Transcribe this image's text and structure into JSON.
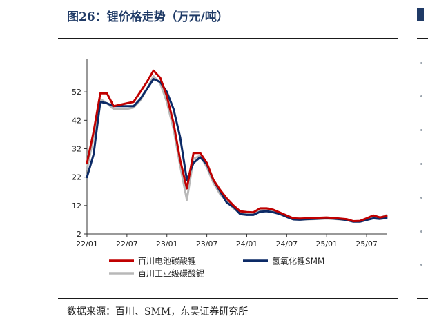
{
  "header": {
    "title": "图26：锂价格走势（万元/吨）"
  },
  "footer": {
    "source": "数据来源：百川、SMM，东吴证券研究所"
  },
  "colors": {
    "title": "#1f3a66",
    "series": [
      "#c00000",
      "#0c2a66",
      "#b8b8b8"
    ]
  },
  "chart_data": {
    "type": "line",
    "title": "",
    "xlabel": "",
    "ylabel": "",
    "ylim": [
      2,
      62
    ],
    "yticks": [
      2,
      12,
      22,
      32,
      42,
      52
    ],
    "xticks": [
      "22/01",
      "22/07",
      "23/01",
      "23/07",
      "24/01",
      "24/07",
      "25/01",
      "25/07"
    ],
    "grid": false,
    "legend_position": "bottom",
    "x": [
      "2022-01",
      "2022-02",
      "2022-03",
      "2022-04",
      "2022-05",
      "2022-06",
      "2022-07",
      "2022-08",
      "2022-09",
      "2022-10",
      "2022-11",
      "2022-12",
      "2023-01",
      "2023-02",
      "2023-03",
      "2023-04",
      "2023-05",
      "2023-06",
      "2023-07",
      "2023-08",
      "2023-09",
      "2023-10",
      "2023-11",
      "2023-12",
      "2024-01",
      "2024-02",
      "2024-03",
      "2024-04",
      "2024-05",
      "2024-06",
      "2024-07",
      "2024-08",
      "2024-09",
      "2024-10",
      "2024-11",
      "2024-12",
      "2025-01",
      "2025-02",
      "2025-03",
      "2025-04",
      "2025-05",
      "2025-06",
      "2025-07",
      "2025-08",
      "2025-09",
      "2025-10"
    ],
    "series": [
      {
        "name": "百川电池碳酸锂",
        "values": [
          27.0,
          38.0,
          51.5,
          51.5,
          47.0,
          47.5,
          48.0,
          48.5,
          52.0,
          55.5,
          59.5,
          57.0,
          50.5,
          41.0,
          28.0,
          18.0,
          30.5,
          30.5,
          27.0,
          21.0,
          17.5,
          14.5,
          12.0,
          10.0,
          9.7,
          9.6,
          11.0,
          11.0,
          10.5,
          9.5,
          8.5,
          7.5,
          7.4,
          7.5,
          7.6,
          7.7,
          7.8,
          7.6,
          7.4,
          7.2,
          6.5,
          6.6,
          7.5,
          8.5,
          7.8,
          8.3
        ]
      },
      {
        "name": "氢氧化锂SMM",
        "values": [
          22.0,
          30.0,
          48.5,
          48.0,
          47.0,
          47.0,
          47.0,
          47.0,
          49.5,
          53.0,
          56.5,
          55.5,
          52.0,
          46.0,
          36.0,
          21.0,
          27.0,
          29.0,
          26.5,
          21.0,
          17.0,
          13.0,
          11.5,
          9.0,
          8.7,
          8.7,
          9.8,
          10.0,
          9.6,
          9.0,
          8.0,
          7.1,
          7.0,
          7.2,
          7.3,
          7.4,
          7.5,
          7.4,
          7.2,
          6.9,
          6.3,
          6.3,
          6.9,
          7.5,
          7.3,
          7.6
        ]
      },
      {
        "name": "百川工业级碳酸锂",
        "values": [
          25.0,
          36.0,
          49.5,
          48.0,
          46.0,
          46.0,
          46.0,
          46.5,
          49.0,
          53.0,
          57.5,
          55.0,
          48.5,
          39.0,
          26.0,
          14.0,
          28.5,
          29.5,
          25.5,
          20.0,
          16.0,
          13.5,
          11.0,
          9.3,
          9.0,
          9.0,
          10.3,
          10.5,
          10.0,
          9.0,
          8.0,
          7.1,
          7.0,
          7.1,
          7.2,
          7.3,
          7.4,
          7.3,
          7.1,
          6.9,
          6.4,
          6.5,
          7.4,
          8.2,
          7.6,
          8.6
        ]
      }
    ]
  }
}
